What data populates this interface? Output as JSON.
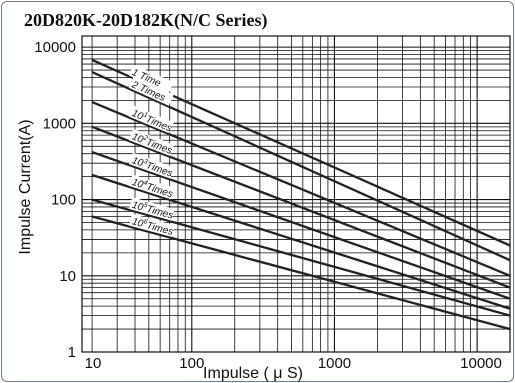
{
  "chart_data": {
    "type": "line",
    "title": "20D820K-20D182K(N/C Series)",
    "xlabel": "Impulse ( μ S)",
    "ylabel": "Impulse Current(A)",
    "x_scale": "log",
    "y_scale": "log",
    "xlim": [
      17,
      17000
    ],
    "ylim": [
      1,
      14000
    ],
    "grid": true,
    "x_ticks": [
      {
        "value": 10,
        "label": "10"
      },
      {
        "value": 100,
        "label": "100"
      },
      {
        "value": 1000,
        "label": "1000"
      },
      {
        "value": 10000,
        "label": "10000"
      }
    ],
    "y_ticks": [
      {
        "value": 1,
        "label": "1"
      },
      {
        "value": 10,
        "label": "10"
      },
      {
        "value": 100,
        "label": "100"
      },
      {
        "value": 1000,
        "label": "1000"
      },
      {
        "value": 10000,
        "label": "10000"
      }
    ],
    "series": [
      {
        "name": "1 Time",
        "label_main": "1",
        "label_sup": "",
        "label_tail": " Time",
        "x": [
          20,
          17000
        ],
        "y": [
          6800,
          25
        ]
      },
      {
        "name": "2 Times",
        "label_main": "2",
        "label_sup": "",
        "label_tail": " Times",
        "x": [
          20,
          17000
        ],
        "y": [
          4700,
          16
        ]
      },
      {
        "name": "10¹ Times",
        "label_main": "10",
        "label_sup": "1",
        "label_tail": "Times",
        "x": [
          20,
          17000
        ],
        "y": [
          1900,
          10
        ]
      },
      {
        "name": "10² Times",
        "label_main": "10",
        "label_sup": "2",
        "label_tail": "Times",
        "x": [
          20,
          17000
        ],
        "y": [
          900,
          7
        ]
      },
      {
        "name": "10³ Times",
        "label_main": "10",
        "label_sup": "3",
        "label_tail": "Times",
        "x": [
          20,
          17000
        ],
        "y": [
          420,
          5
        ]
      },
      {
        "name": "10⁴ Times",
        "label_main": "10",
        "label_sup": "4",
        "label_tail": "Times",
        "x": [
          20,
          17000
        ],
        "y": [
          210,
          3.7
        ]
      },
      {
        "name": "10⁵ Times",
        "label_main": "10",
        "label_sup": "5",
        "label_tail": "Times",
        "x": [
          20,
          17000
        ],
        "y": [
          100,
          3.0
        ]
      },
      {
        "name": "10⁶ Times",
        "label_main": "10",
        "label_sup": "6",
        "label_tail": "Times",
        "x": [
          20,
          17000
        ],
        "y": [
          60,
          2.0
        ]
      }
    ],
    "colors": {
      "line": "#222222",
      "grid": "#111111",
      "frame": "#6f7f8f"
    }
  }
}
